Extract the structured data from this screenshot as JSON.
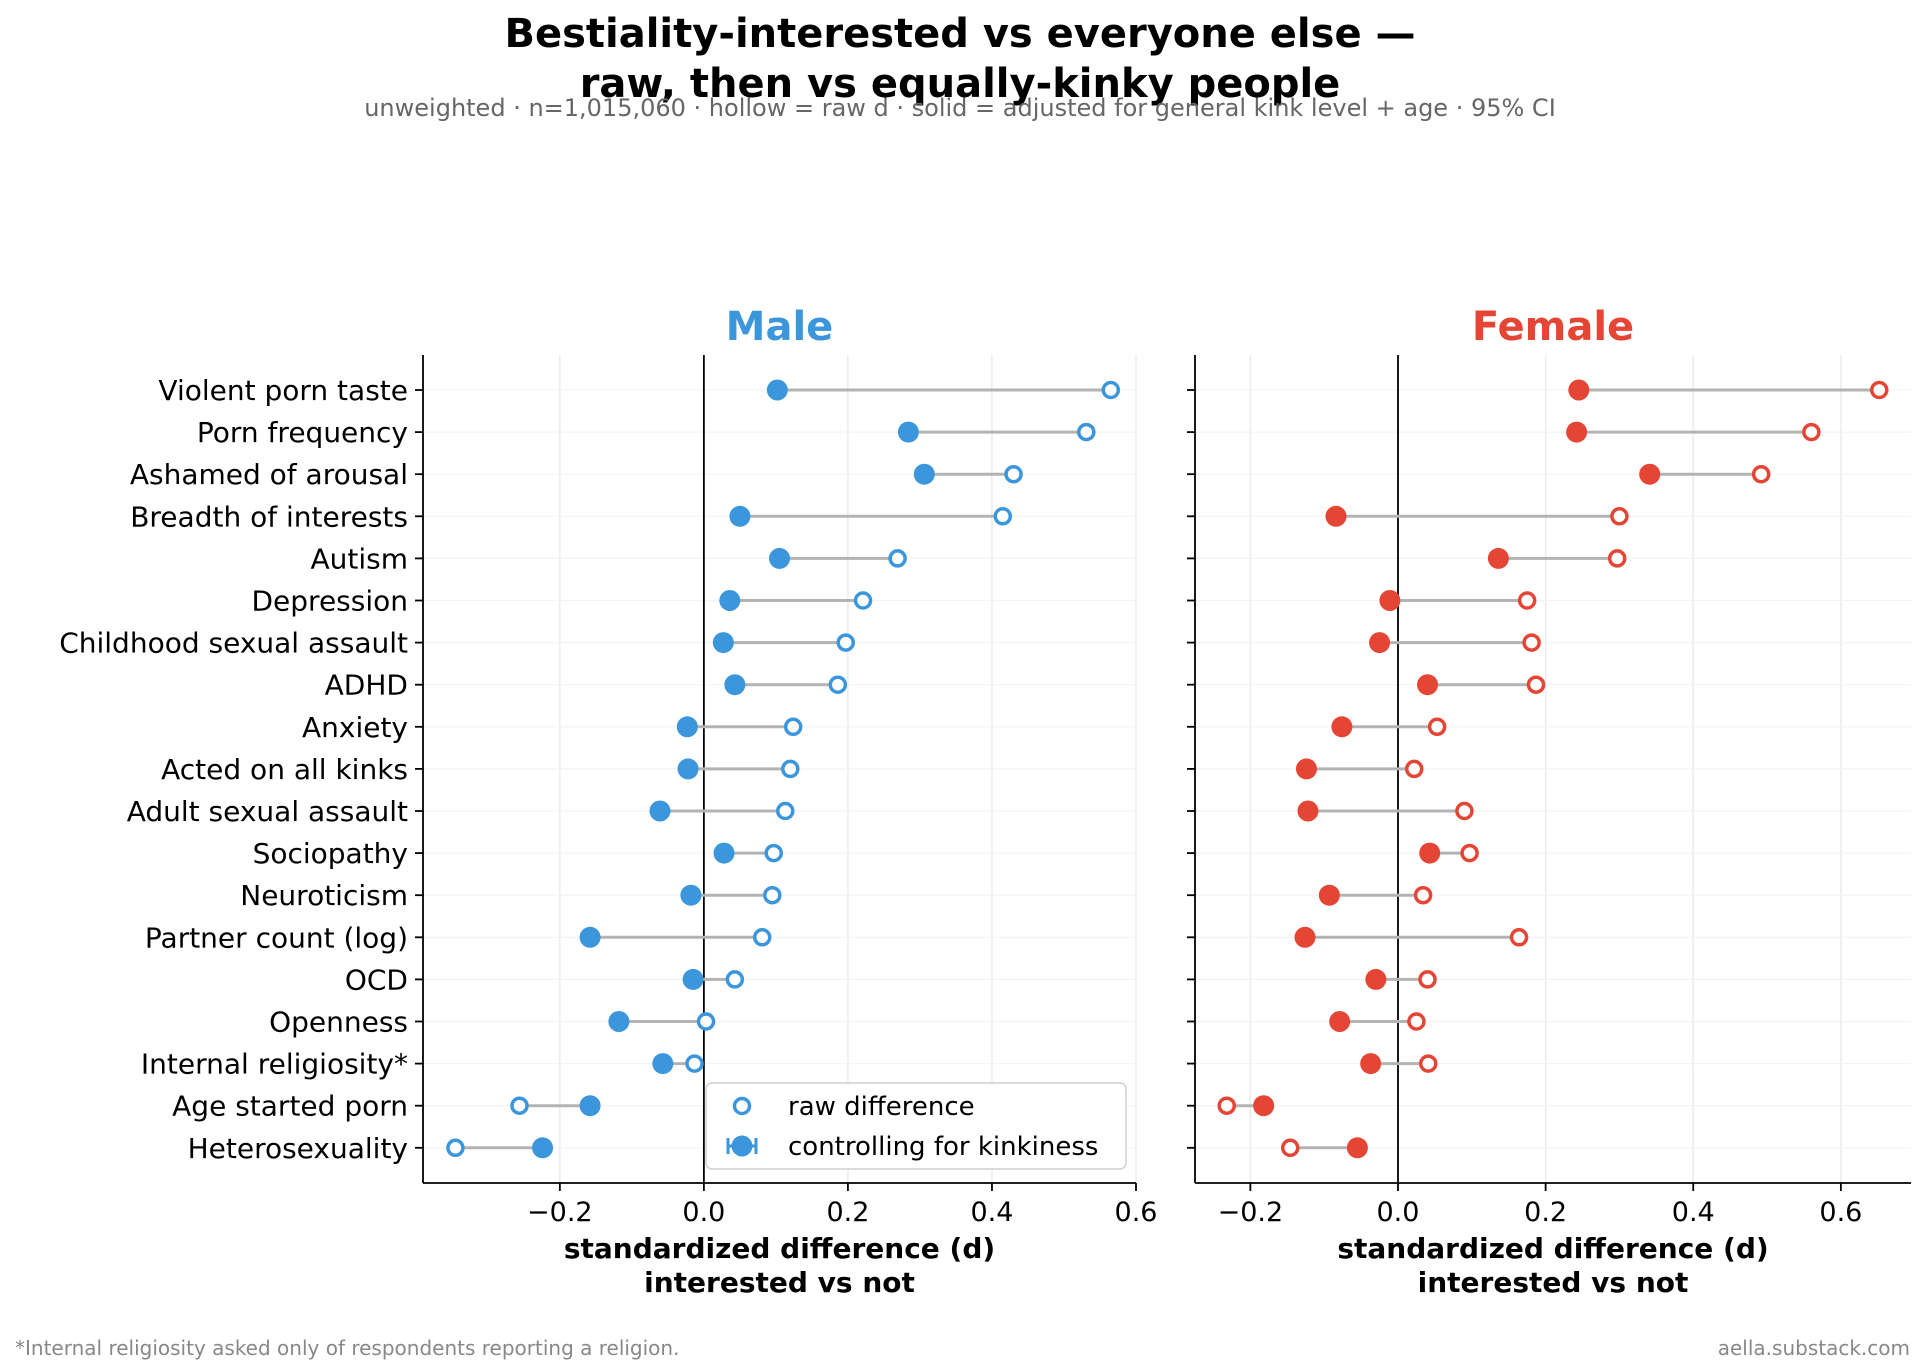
{
  "title_line1": "Bestiality-interested vs everyone else —",
  "title_line2": "raw, then vs equally-kinky people",
  "subtitle": "unweighted · n=1,015,060 · hollow = raw d · solid = adjusted for general kink level + age · 95% CI",
  "footnote": "*Internal religiosity asked only of respondents reporting a religion.",
  "credit": "aella.substack.com",
  "colors": {
    "male": "#3b96dc",
    "female": "#e54535",
    "connector": "#b3b3b3",
    "grid": "#ebebeb"
  },
  "legend": {
    "raw": "raw difference",
    "adjusted": "controlling for kinkiness",
    "placement": "lower-right of Male panel"
  },
  "chart_data": {
    "type": "dot-comparison",
    "categories": [
      "Violent porn taste",
      "Porn frequency",
      "Ashamed of arousal",
      "Breadth of interests",
      "Autism",
      "Depression",
      "Childhood sexual assault",
      "ADHD",
      "Anxiety",
      "Acted on all kinks",
      "Adult sexual assault",
      "Sociopathy",
      "Neuroticism",
      "Partner count (log)",
      "OCD",
      "Openness",
      "Internal religiosity*",
      "Age started porn",
      "Heterosexuality"
    ],
    "xlabel_line1": "standardized difference (d)",
    "xlabel_line2": "interested vs not",
    "grid": true,
    "panels": [
      {
        "name": "Male",
        "xlim": [
          -0.39,
          0.6
        ],
        "xticks": [
          -0.2,
          0.0,
          0.2,
          0.4,
          0.6
        ],
        "xtick_labels": [
          "−0.2",
          "0.0",
          "0.2",
          "0.4",
          "0.6"
        ],
        "raw": [
          0.565,
          0.531,
          0.43,
          0.415,
          0.269,
          0.221,
          0.197,
          0.186,
          0.124,
          0.12,
          0.113,
          0.097,
          0.095,
          0.081,
          0.043,
          0.003,
          -0.013,
          -0.256,
          -0.345
        ],
        "adjusted": [
          0.102,
          0.284,
          0.306,
          0.05,
          0.105,
          0.036,
          0.027,
          0.043,
          -0.023,
          -0.022,
          -0.061,
          0.028,
          -0.018,
          -0.158,
          -0.015,
          -0.118,
          -0.057,
          -0.158,
          -0.224
        ]
      },
      {
        "name": "Female",
        "xlim": [
          -0.275,
          0.695
        ],
        "xticks": [
          -0.2,
          0.0,
          0.2,
          0.4,
          0.6
        ],
        "xtick_labels": [
          "−0.2",
          "0.0",
          "0.2",
          "0.4",
          "0.6"
        ],
        "raw": [
          0.652,
          0.56,
          0.492,
          0.3,
          0.297,
          0.175,
          0.181,
          0.187,
          0.053,
          0.022,
          0.09,
          0.097,
          0.034,
          0.164,
          0.04,
          0.025,
          0.041,
          -0.232,
          -0.146
        ],
        "adjusted": [
          0.245,
          0.242,
          0.341,
          -0.084,
          0.136,
          -0.011,
          -0.025,
          0.04,
          -0.076,
          -0.124,
          -0.122,
          0.043,
          -0.093,
          -0.126,
          -0.03,
          -0.079,
          -0.037,
          -0.182,
          -0.055
        ]
      }
    ]
  }
}
